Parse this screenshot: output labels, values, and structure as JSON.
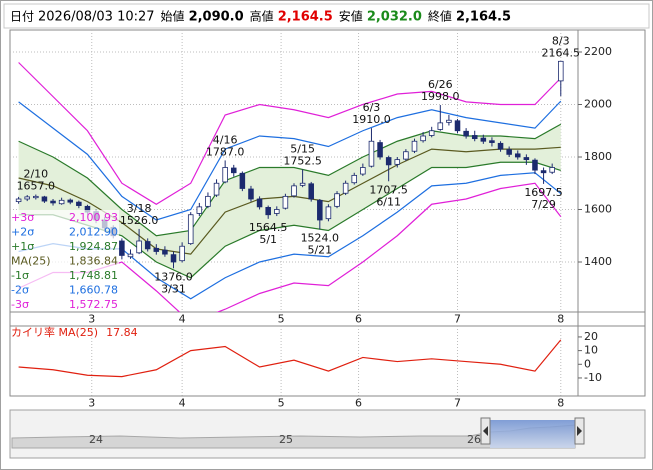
{
  "header": {
    "items": [
      {
        "label": "日付",
        "value": "2026/08/03 10:27",
        "color": "#000000"
      },
      {
        "label": "始値",
        "value": "2,090.0",
        "color": "#000000"
      },
      {
        "label": "高値",
        "value": "2,164.5",
        "color": "#e00000"
      },
      {
        "label": "安値",
        "value": "2,032.0",
        "color": "#1a8a1a"
      },
      {
        "label": "終値",
        "value": "2,164.5",
        "color": "#000000"
      }
    ]
  },
  "chart_data": [
    {
      "type": "candlestick",
      "x": [
        1,
        3,
        5,
        7,
        9,
        11,
        13,
        15,
        17,
        19,
        21,
        23,
        25,
        27,
        29,
        31,
        33,
        35,
        37,
        39,
        41,
        43,
        45,
        47,
        49,
        51,
        53,
        55,
        57,
        59,
        61,
        63,
        65,
        67,
        69,
        71,
        73,
        75,
        77,
        79,
        81,
        83,
        85,
        87,
        89,
        91,
        93,
        95,
        97,
        99,
        101,
        103,
        105,
        107,
        109,
        111,
        113,
        115,
        117,
        119,
        121,
        123,
        125,
        127
      ],
      "open": [
        1630,
        1640,
        1645,
        1648,
        1632,
        1622,
        1636,
        1628,
        1612,
        1592,
        1560,
        1532,
        1480,
        1420,
        1435,
        1478,
        1452,
        1445,
        1428,
        1405,
        1470,
        1585,
        1612,
        1655,
        1705,
        1758,
        1738,
        1678,
        1640,
        1608,
        1585,
        1605,
        1652,
        1692,
        1698,
        1635,
        1565,
        1612,
        1662,
        1702,
        1735,
        1765,
        1855,
        1798,
        1772,
        1792,
        1822,
        1862,
        1882,
        1905,
        1932,
        1938,
        1898,
        1882,
        1872,
        1862,
        1852,
        1828,
        1812,
        1798,
        1788,
        1748,
        1742,
        2090
      ],
      "high": [
        1648,
        1655,
        1657,
        1652,
        1640,
        1645,
        1642,
        1634,
        1618,
        1600,
        1572,
        1540,
        1490,
        1448,
        1526,
        1490,
        1468,
        1460,
        1440,
        1475,
        1590,
        1625,
        1665,
        1715,
        1787,
        1770,
        1745,
        1690,
        1650,
        1615,
        1612,
        1660,
        1700,
        1752.5,
        1705,
        1640,
        1620,
        1670,
        1710,
        1740,
        1775,
        1910,
        1865,
        1805,
        1800,
        1830,
        1870,
        1895,
        1915,
        1998,
        1960,
        1945,
        1910,
        1900,
        1885,
        1875,
        1860,
        1840,
        1825,
        1810,
        1795,
        1760,
        1775,
        2164.5
      ],
      "low": [
        1622,
        1632,
        1638,
        1625,
        1615,
        1618,
        1620,
        1605,
        1580,
        1548,
        1515,
        1490,
        1410,
        1412,
        1430,
        1440,
        1428,
        1420,
        1376,
        1398,
        1465,
        1575,
        1605,
        1648,
        1700,
        1725,
        1670,
        1630,
        1600,
        1564.5,
        1575,
        1600,
        1645,
        1685,
        1630,
        1524,
        1555,
        1605,
        1655,
        1695,
        1728,
        1760,
        1790,
        1707.5,
        1760,
        1785,
        1815,
        1855,
        1875,
        1900,
        1920,
        1890,
        1870,
        1860,
        1850,
        1840,
        1820,
        1800,
        1790,
        1770,
        1735,
        1697.5,
        1735,
        2032
      ],
      "close": [
        1640,
        1648,
        1650,
        1632,
        1625,
        1635,
        1628,
        1615,
        1590,
        1560,
        1530,
        1500,
        1425,
        1430,
        1480,
        1450,
        1440,
        1430,
        1400,
        1460,
        1580,
        1610,
        1650,
        1700,
        1760,
        1740,
        1680,
        1640,
        1610,
        1580,
        1600,
        1650,
        1690,
        1700,
        1640,
        1560,
        1610,
        1660,
        1700,
        1730,
        1760,
        1860,
        1800,
        1770,
        1790,
        1820,
        1860,
        1880,
        1900,
        1930,
        1940,
        1900,
        1880,
        1870,
        1860,
        1855,
        1830,
        1810,
        1800,
        1790,
        1750,
        1740,
        1760,
        2164.5
      ],
      "up_color": "#ffffff",
      "down_color": "#1c2a6e",
      "edge_color": "#1c2a6e",
      "xlim": [
        -1,
        131
      ],
      "ylim": [
        1209.5,
        2283.8
      ],
      "xticks": [
        {
          "value": 18,
          "label": "3"
        },
        {
          "value": 39,
          "label": "4"
        },
        {
          "value": 62,
          "label": "5"
        },
        {
          "value": 80,
          "label": "6"
        },
        {
          "value": 103,
          "label": "7"
        },
        {
          "value": 127,
          "label": "8"
        }
      ],
      "yticks": [
        1400,
        1600,
        1800,
        2000,
        2200
      ],
      "grid": true,
      "band_fill": "#e3f0da",
      "bands": {
        "x": [
          1,
          9,
          17,
          25,
          33,
          41,
          49,
          57,
          65,
          73,
          81,
          89,
          97,
          105,
          113,
          121,
          127
        ],
        "series": [
          {
            "name": "+3σ",
            "color": "#e020d8",
            "legend_value": "2,100.93",
            "values": [
              2160,
              2030,
              1900,
              1700,
              1620,
              1700,
              1960,
              2000,
              1980,
              1950,
              2000,
              2040,
              2050,
              2010,
              2000,
              2000,
              2100.93
            ]
          },
          {
            "name": "+2σ",
            "color": "#1e6fe0",
            "legend_value": "2,012.90",
            "values": [
              2010,
              1910,
              1810,
              1650,
              1560,
              1600,
              1830,
              1880,
              1870,
              1840,
              1900,
              1950,
              1980,
              1950,
              1930,
              1910,
              2012.9
            ]
          },
          {
            "name": "+1σ",
            "color": "#2a7a2a",
            "legend_value": "1,924.87",
            "values": [
              1860,
              1800,
              1720,
              1600,
              1500,
              1520,
              1710,
              1760,
              1760,
              1730,
              1800,
              1860,
              1900,
              1880,
              1880,
              1870,
              1924.87
            ]
          },
          {
            "name": "MA(25)",
            "color": "#5a5a20",
            "legend_value": "1,836.84",
            "values": [
              1720,
              1690,
              1630,
              1550,
              1450,
              1430,
              1590,
              1640,
              1650,
              1630,
              1700,
              1770,
              1830,
              1820,
              1830,
              1830,
              1836.84
            ]
          },
          {
            "name": "-1σ",
            "color": "#2a7a2a",
            "legend_value": "1,748.81",
            "values": [
              1580,
              1580,
              1540,
              1500,
              1400,
              1340,
              1460,
              1520,
              1540,
              1520,
              1600,
              1680,
              1760,
              1760,
              1780,
              1780,
              1748.81
            ]
          },
          {
            "name": "-2σ",
            "color": "#1e6fe0",
            "legend_value": "1,660.78",
            "values": [
              1440,
              1470,
              1450,
              1450,
              1340,
              1260,
              1340,
              1400,
              1430,
              1420,
              1500,
              1590,
              1690,
              1700,
              1730,
              1740,
              1660.78
            ]
          },
          {
            "name": "-3σ",
            "color": "#e020d8",
            "legend_value": "1,572.75",
            "values": [
              1300,
              1360,
              1360,
              1400,
              1290,
              1170,
              1220,
              1280,
              1320,
              1310,
              1400,
              1500,
              1620,
              1640,
              1680,
              1700,
              1572.75
            ]
          }
        ]
      },
      "annotations": [
        {
          "date": "2/10",
          "x": 5,
          "value": 1657,
          "label": "1657.0"
        },
        {
          "date": "3/18",
          "x": 29,
          "value": 1526,
          "label": "1526.0"
        },
        {
          "date": "3/31",
          "x": 37,
          "value": 1376,
          "label": "1376.0"
        },
        {
          "date": "4/16",
          "x": 49,
          "value": 1787,
          "label": "1787.0"
        },
        {
          "date": "5/1",
          "x": 59,
          "value": 1564.5,
          "label": "1564.5"
        },
        {
          "date": "5/15",
          "x": 67,
          "value": 1752.5,
          "label": "1752.5"
        },
        {
          "date": "5/21",
          "x": 71,
          "value": 1524,
          "label": "1524.0"
        },
        {
          "date": "6/3",
          "x": 83,
          "value": 1910,
          "label": "1910.0"
        },
        {
          "date": "6/11",
          "x": 87,
          "value": 1707.5,
          "label": "1707.5"
        },
        {
          "date": "6/26",
          "x": 99,
          "value": 1998,
          "label": "1998.0"
        },
        {
          "date": "7/29",
          "x": 123,
          "value": 1697.5,
          "label": "1697.5"
        },
        {
          "date": "8/3",
          "x": 127,
          "value": 2164.5,
          "label": "2164.5"
        }
      ]
    },
    {
      "type": "line",
      "x": [
        1,
        9,
        17,
        25,
        33,
        41,
        49,
        57,
        65,
        73,
        81,
        89,
        97,
        105,
        113,
        121,
        127
      ],
      "series": [
        {
          "name": "カイリ率 MA(25)",
          "color": "#e02010",
          "values": [
            -2,
            -4,
            -8,
            -9,
            -4,
            10,
            13,
            -2,
            3,
            -5,
            5,
            2,
            4,
            2,
            0,
            -5,
            17.84
          ]
        }
      ],
      "xlim": [
        -1,
        131
      ],
      "ylim": [
        -23.2,
        28
      ],
      "xticks": [
        {
          "value": 18,
          "label": "3"
        },
        {
          "value": 39,
          "label": "4"
        },
        {
          "value": 62,
          "label": "5"
        },
        {
          "value": 80,
          "label": "6"
        },
        {
          "value": 103,
          "label": "7"
        },
        {
          "value": 127,
          "label": "8"
        }
      ],
      "yticks": [
        20,
        10,
        0,
        -10
      ],
      "grid": false
    }
  ],
  "navigator": {
    "labels": [
      "24",
      "25",
      "26"
    ]
  }
}
